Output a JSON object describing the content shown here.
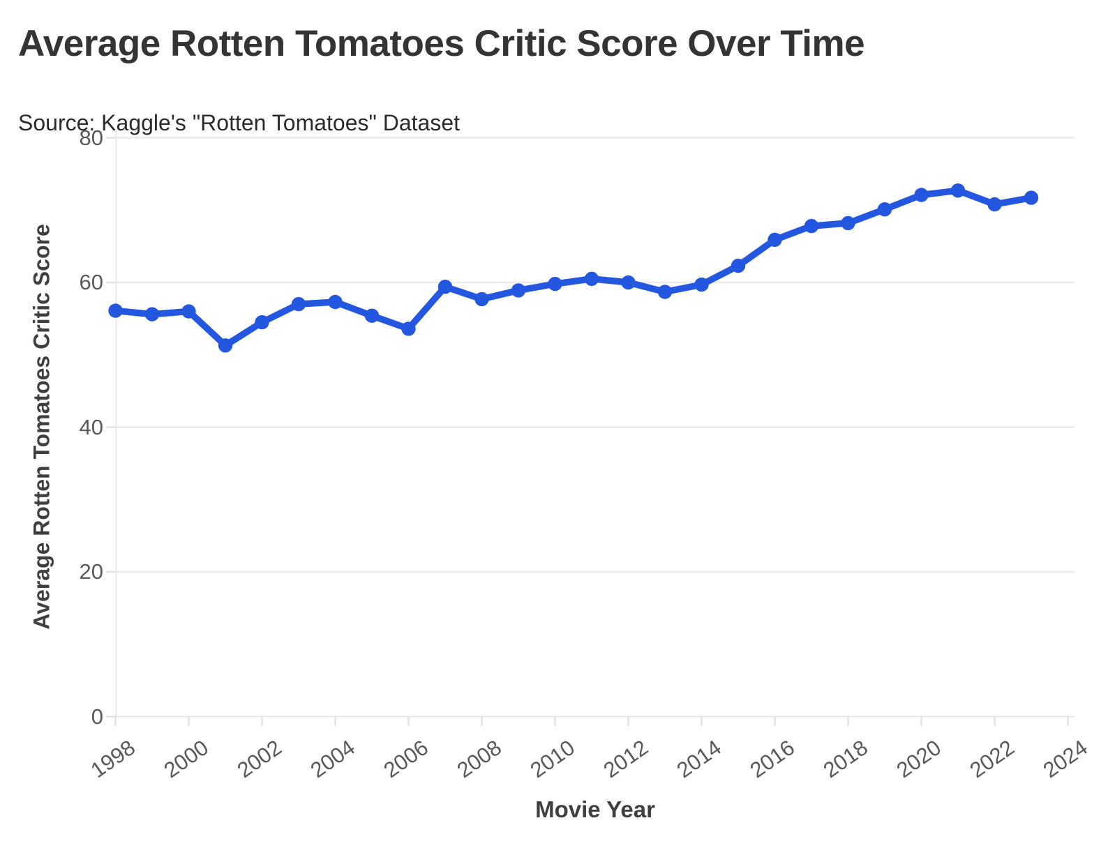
{
  "header": {
    "title": "Average Rotten Tomatoes Critic Score Over Time",
    "subtitle": "Source: Kaggle's \"Rotten Tomatoes\" Dataset"
  },
  "chart_data": {
    "type": "line",
    "title": "Average Rotten Tomatoes Critic Score Over Time",
    "subtitle": "Source: Kaggle's \"Rotten Tomatoes\" Dataset",
    "xlabel": "Movie Year",
    "ylabel": "Average Rotten Tomatoes Critic Score",
    "x": [
      1998,
      1999,
      2000,
      2001,
      2002,
      2003,
      2004,
      2005,
      2006,
      2007,
      2008,
      2009,
      2010,
      2011,
      2012,
      2013,
      2014,
      2015,
      2016,
      2017,
      2018,
      2019,
      2020,
      2021,
      2022,
      2023
    ],
    "y": [
      56.1,
      55.6,
      56.0,
      51.3,
      54.5,
      57.0,
      57.3,
      55.4,
      53.6,
      59.4,
      57.7,
      58.9,
      59.8,
      60.5,
      60.0,
      58.7,
      59.7,
      62.3,
      65.9,
      67.8,
      68.2,
      70.1,
      72.1,
      72.7,
      70.8,
      71.7
    ],
    "x_ticks": [
      1998,
      2000,
      2002,
      2004,
      2006,
      2008,
      2010,
      2012,
      2014,
      2016,
      2018,
      2020,
      2022,
      2024
    ],
    "y_ticks": [
      80,
      60,
      40,
      20,
      0
    ],
    "xlim": [
      1998,
      2024.2
    ],
    "ylim": [
      0,
      80
    ],
    "grid": "horizontal",
    "legend": "none",
    "marker": "dot",
    "colors": {
      "line": "#2357e0",
      "grid": "#ececec",
      "tick": "#e2e2e2",
      "title": "#343434",
      "subtitle": "#2b2b2b",
      "axis_title": "#3f3f3f",
      "tick_label": "#595959",
      "background": "#ffffff"
    }
  }
}
